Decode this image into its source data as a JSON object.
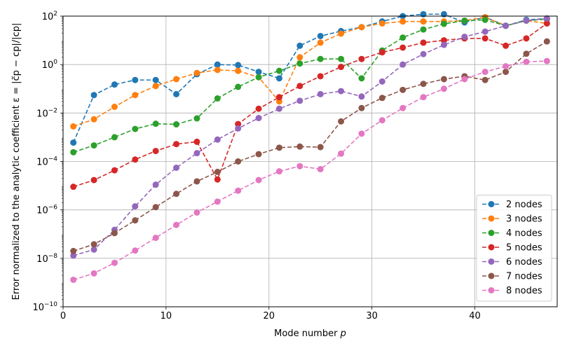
{
  "chart_data": {
    "type": "line",
    "title": "",
    "xlabel": "Mode number p",
    "ylabel": "Error normalized to the analytic coefficient ε = |c̃p − cp|/|cp|",
    "xscale": "linear",
    "yscale": "log",
    "xlim": [
      0,
      48
    ],
    "ylim": [
      1e-10,
      100
    ],
    "x_ticks": [
      0,
      10,
      20,
      30,
      40
    ],
    "y_ticks": [
      1e-10,
      1e-08,
      1e-06,
      0.0001,
      0.01,
      1,
      100
    ],
    "y_tick_labels": [
      "10",
      "10",
      "10",
      "10",
      "10",
      "10",
      "10"
    ],
    "y_tick_exponents": [
      "−10",
      "−8",
      "−6",
      "−4",
      "−2",
      "0",
      "2"
    ],
    "grid": true,
    "legend_position": "lower right",
    "x": [
      1,
      3,
      5,
      7,
      9,
      11,
      13,
      15,
      17,
      19,
      21,
      23,
      25,
      27,
      29,
      31,
      33,
      35,
      37,
      39,
      41,
      43,
      45,
      47
    ],
    "series": [
      {
        "name": "2 nodes",
        "color": "#1f77b4",
        "values": [
          0.0006,
          0.055,
          0.15,
          0.23,
          0.23,
          0.06,
          0.4,
          1.0,
          0.95,
          0.5,
          0.27,
          6,
          15,
          24,
          35,
          60,
          100,
          120,
          120,
          55,
          90,
          40,
          70,
          80
        ]
      },
      {
        "name": "3 nodes",
        "color": "#ff7f0e",
        "values": [
          0.0028,
          0.0055,
          0.018,
          0.055,
          0.13,
          0.25,
          0.45,
          0.6,
          0.55,
          0.3,
          0.03,
          2.0,
          8,
          19,
          35,
          50,
          60,
          60,
          60,
          65,
          90,
          40,
          65,
          50
        ]
      },
      {
        "name": "4 nodes",
        "color": "#2ca02c",
        "values": [
          0.00024,
          0.00046,
          0.001,
          0.0022,
          0.0036,
          0.0034,
          0.006,
          0.04,
          0.12,
          0.3,
          0.55,
          1.1,
          1.7,
          1.7,
          0.27,
          3.8,
          13,
          28,
          48,
          65,
          70,
          40,
          65,
          75
        ]
      },
      {
        "name": "5 nodes",
        "color": "#d62728",
        "values": [
          9e-06,
          1.7e-05,
          4.3e-05,
          0.00012,
          0.00027,
          0.00052,
          0.00065,
          1.8e-05,
          0.0035,
          0.015,
          0.045,
          0.13,
          0.33,
          0.8,
          1.7,
          3.2,
          5,
          8,
          10,
          12,
          12,
          6,
          12,
          50
        ]
      },
      {
        "name": "6 nodes",
        "color": "#9467bd",
        "values": [
          1.3e-08,
          2.3e-08,
          1.5e-07,
          1.4e-06,
          1.1e-05,
          5.5e-05,
          0.00022,
          0.0008,
          0.0023,
          0.0062,
          0.015,
          0.032,
          0.06,
          0.08,
          0.048,
          0.2,
          1.0,
          2.7,
          6.5,
          14,
          23,
          40,
          65,
          80
        ]
      },
      {
        "name": "7 nodes",
        "color": "#8c564b",
        "values": [
          2e-08,
          3.8e-08,
          1.1e-07,
          3.7e-07,
          1.3e-06,
          4.6e-06,
          1.5e-05,
          3.7e-05,
          0.0001,
          0.0002,
          0.00037,
          0.00041,
          0.00039,
          0.0045,
          0.016,
          0.042,
          0.09,
          0.16,
          0.25,
          0.33,
          0.23,
          0.5,
          2.8,
          9
        ]
      },
      {
        "name": "8 nodes",
        "color": "#e377c2",
        "values": [
          1.3e-09,
          2.4e-09,
          6.5e-09,
          2.1e-08,
          7e-08,
          2.4e-07,
          7.8e-07,
          2.2e-06,
          6.2e-06,
          1.7e-05,
          3.9e-05,
          6.4e-05,
          4.8e-05,
          0.00021,
          0.0014,
          0.005,
          0.016,
          0.045,
          0.1,
          0.25,
          0.5,
          0.85,
          1.3,
          1.4
        ]
      }
    ]
  }
}
